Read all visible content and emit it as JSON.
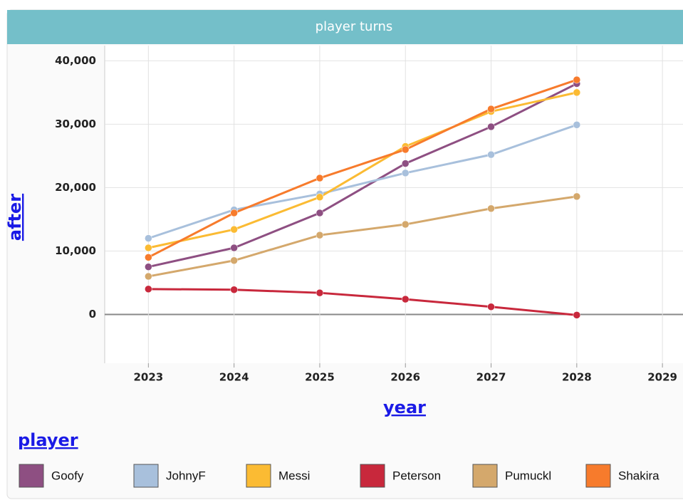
{
  "chart_data": {
    "type": "line",
    "title": "player turns",
    "x_label": "year",
    "y_label": "after",
    "legend_title": "player",
    "x": [
      2023,
      2024,
      2025,
      2026,
      2027,
      2028
    ],
    "xlim": [
      2022.49,
      2029.24
    ],
    "xticks": [
      2023,
      2024,
      2025,
      2026,
      2027,
      2028,
      2029
    ],
    "ylim": [
      -7700,
      42400
    ],
    "yticks": [
      0,
      {
        "value": 10000,
        "label": "10,000"
      },
      {
        "value": 20000,
        "label": "20,000"
      },
      {
        "value": 30000,
        "label": "30,000"
      },
      {
        "value": 40000,
        "label": "40,000"
      }
    ],
    "grid": true,
    "series": [
      {
        "name": "Goofy",
        "color": "#8e4f82",
        "values": [
          7500,
          10500,
          16000,
          23800,
          29600,
          36400
        ]
      },
      {
        "name": "JohnyF",
        "color": "#a8c0dc",
        "values": [
          12000,
          16500,
          19000,
          22300,
          25200,
          29900
        ]
      },
      {
        "name": "Messi",
        "color": "#fbbb33",
        "values": [
          10500,
          13400,
          18500,
          26500,
          32000,
          35000
        ]
      },
      {
        "name": "Peterson",
        "color": "#c8283c",
        "values": [
          4000,
          3900,
          3400,
          2400,
          1200,
          -100
        ]
      },
      {
        "name": "Pumuckl",
        "color": "#d4a86c",
        "values": [
          6000,
          8500,
          12500,
          14200,
          16700,
          18600
        ]
      },
      {
        "name": "Shakira",
        "color": "#f77b2c",
        "values": [
          9000,
          16000,
          21500,
          26000,
          32400,
          37000
        ]
      }
    ]
  }
}
